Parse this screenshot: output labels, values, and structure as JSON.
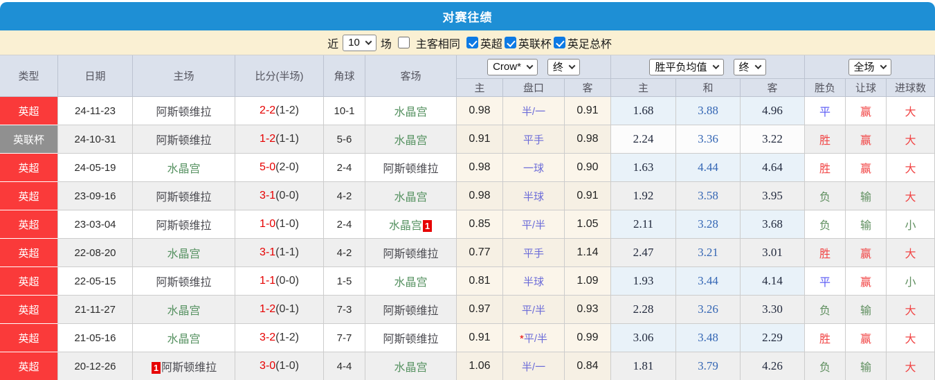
{
  "title": "对赛往绩",
  "filter": {
    "near_label": "近",
    "count_value": "10",
    "matches_label": "场",
    "same_venue_label": "主客相同",
    "same_venue_checked": false,
    "leagues": [
      {
        "label": "英超",
        "checked": true
      },
      {
        "label": "英联杯",
        "checked": true
      },
      {
        "label": "英足总杯",
        "checked": true
      }
    ]
  },
  "table": {
    "left_headers": [
      "类型",
      "日期",
      "主场",
      "比分(半场)",
      "角球",
      "客场"
    ],
    "selects": {
      "bookmaker": "Crow*",
      "bookmaker_state": "终",
      "avg": "胜平负均值",
      "avg_state": "终",
      "scope": "全场"
    },
    "sub_headers": [
      "主",
      "盘口",
      "客",
      "主",
      "和",
      "客",
      "胜负",
      "让球",
      "进球数"
    ],
    "rows": [
      {
        "type": "epl",
        "league": "英超",
        "date": "24-11-23",
        "home": {
          "name": "阿斯顿维拉",
          "c": "dark"
        },
        "score": {
          "ft": "2-2",
          "ht": "(1-2)"
        },
        "corners": "10-1",
        "away": {
          "name": "水晶宫",
          "c": "green"
        },
        "crow": {
          "h": "0.98",
          "hcap": "半/一",
          "a": "0.91"
        },
        "avg": {
          "h": "1.68",
          "d": "3.88",
          "a": "4.96"
        },
        "res": [
          {
            "t": "平",
            "c": "b"
          },
          {
            "t": "赢",
            "c": "r"
          },
          {
            "t": "大",
            "c": "r"
          }
        ]
      },
      {
        "type": "cup",
        "league": "英联杯",
        "date": "24-10-31",
        "home": {
          "name": "阿斯顿维拉",
          "c": "dark"
        },
        "score": {
          "ft": "1-2",
          "ht": "(1-1)"
        },
        "corners": "5-6",
        "away": {
          "name": "水晶宫",
          "c": "green"
        },
        "crow": {
          "h": "0.91",
          "hcap": "平手",
          "a": "0.98"
        },
        "avg": {
          "h": "2.24",
          "d": "3.36",
          "a": "3.22"
        },
        "res": [
          {
            "t": "胜",
            "c": "r"
          },
          {
            "t": "赢",
            "c": "r"
          },
          {
            "t": "大",
            "c": "r"
          }
        ]
      },
      {
        "type": "epl",
        "league": "英超",
        "date": "24-05-19",
        "home": {
          "name": "水晶宫",
          "c": "green"
        },
        "score": {
          "ft": "5-0",
          "ht": "(2-0)"
        },
        "corners": "2-4",
        "away": {
          "name": "阿斯顿维拉",
          "c": "dark"
        },
        "crow": {
          "h": "0.98",
          "hcap": "一球",
          "a": "0.90"
        },
        "avg": {
          "h": "1.63",
          "d": "4.44",
          "a": "4.64"
        },
        "res": [
          {
            "t": "胜",
            "c": "r"
          },
          {
            "t": "赢",
            "c": "r"
          },
          {
            "t": "大",
            "c": "r"
          }
        ]
      },
      {
        "type": "epl",
        "league": "英超",
        "date": "23-09-16",
        "home": {
          "name": "阿斯顿维拉",
          "c": "dark"
        },
        "score": {
          "ft": "3-1",
          "ht": "(0-0)"
        },
        "corners": "4-2",
        "away": {
          "name": "水晶宫",
          "c": "green"
        },
        "crow": {
          "h": "0.98",
          "hcap": "半球",
          "a": "0.91"
        },
        "avg": {
          "h": "1.92",
          "d": "3.58",
          "a": "3.95"
        },
        "res": [
          {
            "t": "负",
            "c": "g"
          },
          {
            "t": "输",
            "c": "g"
          },
          {
            "t": "大",
            "c": "r"
          }
        ]
      },
      {
        "type": "epl",
        "league": "英超",
        "date": "23-03-04",
        "home": {
          "name": "阿斯顿维拉",
          "c": "dark"
        },
        "score": {
          "ft": "1-0",
          "ht": "(1-0)"
        },
        "corners": "2-4",
        "away": {
          "name": "水晶宫",
          "c": "green",
          "badge": "1",
          "badge_pos": "after"
        },
        "crow": {
          "h": "0.85",
          "hcap": "平/半",
          "a": "1.05"
        },
        "avg": {
          "h": "2.11",
          "d": "3.28",
          "a": "3.68"
        },
        "res": [
          {
            "t": "负",
            "c": "g"
          },
          {
            "t": "输",
            "c": "g"
          },
          {
            "t": "小",
            "c": "g"
          }
        ]
      },
      {
        "type": "epl",
        "league": "英超",
        "date": "22-08-20",
        "home": {
          "name": "水晶宫",
          "c": "green"
        },
        "score": {
          "ft": "3-1",
          "ht": "(1-1)"
        },
        "corners": "4-2",
        "away": {
          "name": "阿斯顿维拉",
          "c": "dark"
        },
        "crow": {
          "h": "0.77",
          "hcap": "平手",
          "a": "1.14"
        },
        "avg": {
          "h": "2.47",
          "d": "3.21",
          "a": "3.01"
        },
        "res": [
          {
            "t": "胜",
            "c": "r"
          },
          {
            "t": "赢",
            "c": "r"
          },
          {
            "t": "大",
            "c": "r"
          }
        ]
      },
      {
        "type": "epl",
        "league": "英超",
        "date": "22-05-15",
        "home": {
          "name": "阿斯顿维拉",
          "c": "dark"
        },
        "score": {
          "ft": "1-1",
          "ht": "(0-0)"
        },
        "corners": "1-5",
        "away": {
          "name": "水晶宫",
          "c": "green"
        },
        "crow": {
          "h": "0.81",
          "hcap": "半球",
          "a": "1.09"
        },
        "avg": {
          "h": "1.93",
          "d": "3.44",
          "a": "4.14"
        },
        "res": [
          {
            "t": "平",
            "c": "b"
          },
          {
            "t": "赢",
            "c": "r"
          },
          {
            "t": "小",
            "c": "g"
          }
        ]
      },
      {
        "type": "epl",
        "league": "英超",
        "date": "21-11-27",
        "home": {
          "name": "水晶宫",
          "c": "green"
        },
        "score": {
          "ft": "1-2",
          "ht": "(0-1)"
        },
        "corners": "7-3",
        "away": {
          "name": "阿斯顿维拉",
          "c": "dark"
        },
        "crow": {
          "h": "0.97",
          "hcap": "平/半",
          "a": "0.93"
        },
        "avg": {
          "h": "2.28",
          "d": "3.26",
          "a": "3.30"
        },
        "res": [
          {
            "t": "负",
            "c": "g"
          },
          {
            "t": "输",
            "c": "g"
          },
          {
            "t": "大",
            "c": "r"
          }
        ]
      },
      {
        "type": "epl",
        "league": "英超",
        "date": "21-05-16",
        "home": {
          "name": "水晶宫",
          "c": "green"
        },
        "score": {
          "ft": "3-2",
          "ht": "(1-2)"
        },
        "corners": "7-7",
        "away": {
          "name": "阿斯顿维拉",
          "c": "dark"
        },
        "crow": {
          "h": "0.91",
          "star": "*",
          "hcap": "平/半",
          "a": "0.99"
        },
        "avg": {
          "h": "3.06",
          "d": "3.48",
          "a": "2.29"
        },
        "res": [
          {
            "t": "胜",
            "c": "r"
          },
          {
            "t": "赢",
            "c": "r"
          },
          {
            "t": "大",
            "c": "r"
          }
        ]
      },
      {
        "type": "epl",
        "league": "英超",
        "date": "20-12-26",
        "home": {
          "name": "阿斯顿维拉",
          "c": "dark",
          "badge": "1",
          "badge_pos": "before"
        },
        "score": {
          "ft": "3-0",
          "ht": "(1-0)"
        },
        "corners": "4-4",
        "away": {
          "name": "水晶宫",
          "c": "green"
        },
        "crow": {
          "h": "1.06",
          "hcap": "半/一",
          "a": "0.84"
        },
        "avg": {
          "h": "1.81",
          "d": "3.79",
          "a": "4.26"
        },
        "res": [
          {
            "t": "负",
            "c": "g"
          },
          {
            "t": "输",
            "c": "g"
          },
          {
            "t": "大",
            "c": "r"
          }
        ]
      }
    ]
  },
  "colors": {
    "title_bar": "#1e8fd5",
    "filter_bg": "#faf0d3",
    "header_bg": "#dbe1ec",
    "header_border": "#bcc3d0",
    "body_border": "#cccccc",
    "type_epl": "#fa3a3a",
    "type_cup": "#909090",
    "row_alt": "#efefef",
    "crow_bg": "#fbf5ea",
    "crow_bg_alt": "#f6f0e4",
    "avg_bg": "#e9f2f9",
    "score_red": "#e60000",
    "team_dark": "#4a4a50",
    "team_green": "#559160",
    "handicap": "#6c6cd8",
    "avg_side": "#222a3e",
    "avg_mid": "#3466b4",
    "result_red": "#f14545",
    "result_blue": "#5f5ff5",
    "result_green": "#5f8f5f",
    "checkbox_blue": "#0d7ae4"
  }
}
